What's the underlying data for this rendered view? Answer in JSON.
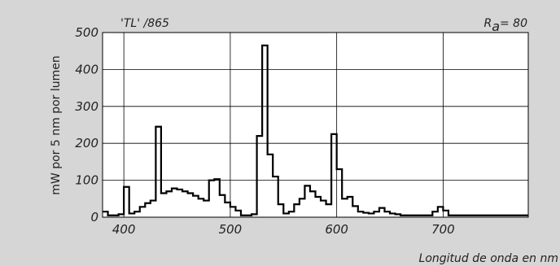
{
  "chart_data": {
    "type": "line",
    "title_left": "'TL' /865",
    "title_right_main": "R",
    "title_right_sub": "a",
    "title_right_tail": "= 80",
    "xlabel": "Longitud de onda en nm",
    "ylabel": "mW por 5 nm por lumen",
    "xlim": [
      380,
      780
    ],
    "ylim": [
      0,
      500
    ],
    "x_ticks": [
      400,
      500,
      600,
      700
    ],
    "y_ticks": [
      0,
      100,
      200,
      300,
      400,
      500
    ],
    "grid": true,
    "colors": {
      "background": "#d6d6d6",
      "plot_background": "#ffffff",
      "line": "#000000",
      "grid": "#000000"
    },
    "series": [
      {
        "x": [
          380,
          385,
          390,
          395,
          400,
          405,
          410,
          415,
          420,
          425,
          430,
          435,
          440,
          445,
          450,
          455,
          460,
          465,
          470,
          475,
          480,
          485,
          490,
          495,
          500,
          505,
          510,
          515,
          520,
          525,
          530,
          535,
          540,
          545,
          550,
          555,
          560,
          565,
          570,
          575,
          580,
          585,
          590,
          595,
          600,
          605,
          610,
          615,
          620,
          625,
          630,
          635,
          640,
          645,
          650,
          655,
          660,
          665,
          670,
          675,
          680,
          685,
          690,
          695,
          700,
          705,
          710,
          715,
          720,
          725,
          730,
          735,
          740,
          745,
          750,
          755,
          760,
          765,
          770,
          775,
          780
        ],
        "values": [
          15,
          5,
          5,
          8,
          82,
          10,
          15,
          28,
          38,
          45,
          245,
          65,
          70,
          78,
          75,
          70,
          65,
          58,
          50,
          45,
          100,
          103,
          60,
          40,
          28,
          18,
          5,
          5,
          8,
          220,
          465,
          170,
          110,
          35,
          10,
          15,
          35,
          50,
          85,
          70,
          55,
          45,
          35,
          225,
          130,
          50,
          55,
          30,
          15,
          12,
          10,
          15,
          25,
          15,
          10,
          8,
          5,
          5,
          5,
          5,
          5,
          5,
          15,
          28,
          18,
          5,
          5,
          5,
          5,
          5,
          5,
          5,
          5,
          5,
          5,
          5,
          5,
          5,
          5,
          5,
          5
        ]
      }
    ]
  }
}
